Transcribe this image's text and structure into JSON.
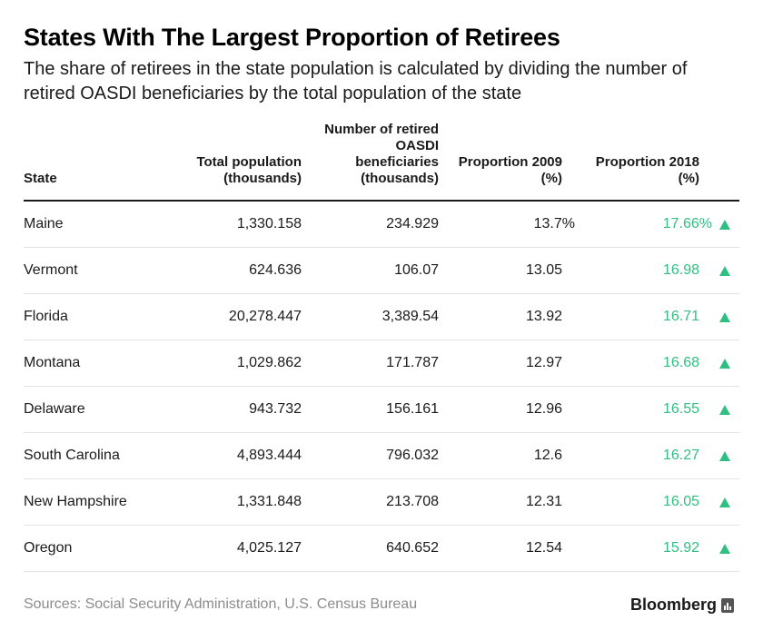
{
  "title": "States With The Largest Proportion of Retirees",
  "subtitle": "The share of retirees in the state population is calculated by dividing the number of retired OASDI beneficiaries by the total population of the state",
  "chart_data": {
    "type": "table",
    "columns": [
      {
        "key": "state",
        "label": "State"
      },
      {
        "key": "pop",
        "label": "Total population\n(thousands)"
      },
      {
        "key": "ret",
        "label": "Number of retired\nOASDI\nbeneficiaries\n(thousands)"
      },
      {
        "key": "p09",
        "label": "Proportion 2009\n(%)"
      },
      {
        "key": "p18",
        "label": "Proportion 2018\n(%)"
      }
    ],
    "rows": [
      {
        "state": "Maine",
        "pop": "1,330.158",
        "ret": "234.929",
        "p09": "13.7%",
        "p18": "17.66%",
        "trend": "up"
      },
      {
        "state": "Vermont",
        "pop": "624.636",
        "ret": "106.07",
        "p09": "13.05",
        "p18": "16.98",
        "trend": "up"
      },
      {
        "state": "Florida",
        "pop": "20,278.447",
        "ret": "3,389.54",
        "p09": "13.92",
        "p18": "16.71",
        "trend": "up"
      },
      {
        "state": "Montana",
        "pop": "1,029.862",
        "ret": "171.787",
        "p09": "12.97",
        "p18": "16.68",
        "trend": "up"
      },
      {
        "state": "Delaware",
        "pop": "943.732",
        "ret": "156.161",
        "p09": "12.96",
        "p18": "16.55",
        "trend": "up"
      },
      {
        "state": "South Carolina",
        "pop": "4,893.444",
        "ret": "796.032",
        "p09": "12.6",
        "p18": "16.27",
        "trend": "up"
      },
      {
        "state": "New Hampshire",
        "pop": "1,331.848",
        "ret": "213.708",
        "p09": "12.31",
        "p18": "16.05",
        "trend": "up"
      },
      {
        "state": "Oregon",
        "pop": "4,025.127",
        "ret": "640.652",
        "p09": "12.54",
        "p18": "15.92",
        "trend": "up"
      }
    ]
  },
  "colors": {
    "up": "#2fbf82",
    "source": "#8c8c8c"
  },
  "footer": {
    "source": "Sources: Social Security Administration, U.S. Census Bureau",
    "brand": "Bloomberg",
    "brand_icon": "bloomberg-chart-icon"
  }
}
